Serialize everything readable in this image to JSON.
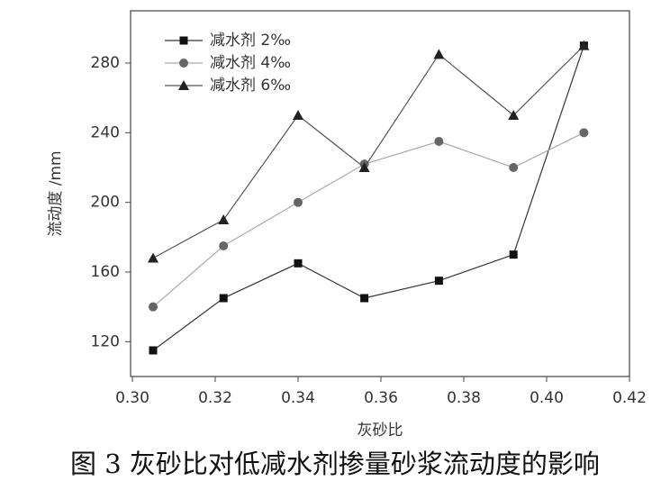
{
  "chart_data": {
    "type": "line",
    "caption": "图 3 灰砂比对低减水剂掺量砂浆流动度的影响",
    "xlabel": "灰砂比",
    "ylabel": "流动度 /mm",
    "x": [
      0.305,
      0.322,
      0.34,
      0.356,
      0.374,
      0.392,
      0.409
    ],
    "series": [
      {
        "name": "减水剂 2‰",
        "color": "#111111",
        "line_color": "#333333",
        "marker": "square",
        "values": [
          115,
          145,
          165,
          145,
          155,
          170,
          290
        ]
      },
      {
        "name": "减水剂 4‰",
        "color": "#666666",
        "line_color": "#aaaaaa",
        "marker": "circle",
        "values": [
          140,
          175,
          200,
          222,
          235,
          220,
          240
        ]
      },
      {
        "name": "减水剂 6‰",
        "color": "#222222",
        "line_color": "#555555",
        "marker": "triangle",
        "values": [
          168,
          190,
          250,
          220,
          285,
          250,
          290
        ]
      }
    ],
    "xlim": [
      0.3,
      0.42
    ],
    "xticks": [
      {
        "value": 0.3,
        "label": "0.30"
      },
      0.32,
      0.34,
      0.36,
      0.38,
      {
        "value": 0.4,
        "label": "0.40"
      },
      0.42
    ],
    "ylim": [
      100,
      310
    ],
    "yticks": [
      120,
      160,
      200,
      240,
      280
    ],
    "legend": "upper-left"
  }
}
